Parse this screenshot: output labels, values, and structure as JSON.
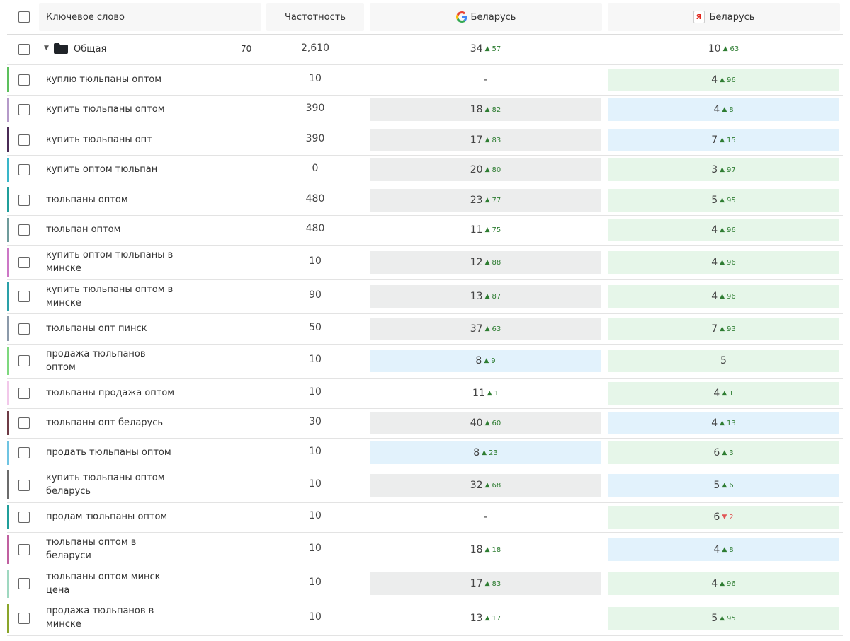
{
  "header": {
    "keyword_label": "Ключевое слово",
    "frequency_label": "Частотность",
    "google_label": "Беларусь",
    "yandex_label": "Беларусь",
    "yandex_letter": "Я"
  },
  "group": {
    "name": "Общая",
    "count": "70",
    "frequency": "2,610",
    "google": {
      "pos": "34",
      "delta": "57",
      "dir": "up"
    },
    "yandex": {
      "pos": "10",
      "delta": "63",
      "dir": "up"
    }
  },
  "rows": [
    {
      "keyword": "куплю тюльпаны оптом",
      "frequency": "10",
      "marker": "#5cc05c",
      "google": {
        "pos": "-",
        "delta": "",
        "dir": "",
        "bg": "none"
      },
      "yandex": {
        "pos": "4",
        "delta": "96",
        "dir": "up",
        "bg": "green"
      }
    },
    {
      "keyword": "купить тюльпаны оптом",
      "frequency": "390",
      "marker": "#b59ac9",
      "google": {
        "pos": "18",
        "delta": "82",
        "dir": "up",
        "bg": "gray"
      },
      "yandex": {
        "pos": "4",
        "delta": "8",
        "dir": "up",
        "bg": "blue"
      }
    },
    {
      "keyword": "купить тюльпаны опт",
      "frequency": "390",
      "marker": "#4a2a55",
      "google": {
        "pos": "17",
        "delta": "83",
        "dir": "up",
        "bg": "gray"
      },
      "yandex": {
        "pos": "7",
        "delta": "15",
        "dir": "up",
        "bg": "blue"
      }
    },
    {
      "keyword": "купить оптом тюльпан",
      "frequency": "0",
      "marker": "#39b6c9",
      "google": {
        "pos": "20",
        "delta": "80",
        "dir": "up",
        "bg": "gray"
      },
      "yandex": {
        "pos": "3",
        "delta": "97",
        "dir": "up",
        "bg": "green"
      }
    },
    {
      "keyword": "тюльпаны оптом",
      "frequency": "480",
      "marker": "#1f9e9a",
      "google": {
        "pos": "23",
        "delta": "77",
        "dir": "up",
        "bg": "gray"
      },
      "yandex": {
        "pos": "5",
        "delta": "95",
        "dir": "up",
        "bg": "green"
      }
    },
    {
      "keyword": "тюльпан оптом",
      "frequency": "480",
      "marker": "#6f9b9b",
      "google": {
        "pos": "11",
        "delta": "75",
        "dir": "up",
        "bg": "none"
      },
      "yandex": {
        "pos": "4",
        "delta": "96",
        "dir": "up",
        "bg": "green"
      }
    },
    {
      "keyword": "купить оптом тюльпаны в минске",
      "frequency": "10",
      "marker": "#cc77c6",
      "google": {
        "pos": "12",
        "delta": "88",
        "dir": "up",
        "bg": "gray"
      },
      "yandex": {
        "pos": "4",
        "delta": "96",
        "dir": "up",
        "bg": "green"
      }
    },
    {
      "keyword": "купить тюльпаны оптом в минске",
      "frequency": "90",
      "marker": "#2aa0a8",
      "google": {
        "pos": "13",
        "delta": "87",
        "dir": "up",
        "bg": "gray"
      },
      "yandex": {
        "pos": "4",
        "delta": "96",
        "dir": "up",
        "bg": "green"
      }
    },
    {
      "keyword": "тюльпаны опт пинск",
      "frequency": "50",
      "marker": "#8c9aaa",
      "google": {
        "pos": "37",
        "delta": "63",
        "dir": "up",
        "bg": "gray"
      },
      "yandex": {
        "pos": "7",
        "delta": "93",
        "dir": "up",
        "bg": "green"
      }
    },
    {
      "keyword": "продажа тюльпанов оптом",
      "frequency": "10",
      "marker": "#7ed87e",
      "google": {
        "pos": "8",
        "delta": "9",
        "dir": "up",
        "bg": "blue"
      },
      "yandex": {
        "pos": "5",
        "delta": "",
        "dir": "",
        "bg": "green"
      }
    },
    {
      "keyword": "тюльпаны продажа оптом",
      "frequency": "10",
      "marker": "#f2c8ea",
      "google": {
        "pos": "11",
        "delta": "1",
        "dir": "up",
        "bg": "none"
      },
      "yandex": {
        "pos": "4",
        "delta": "1",
        "dir": "up",
        "bg": "green"
      }
    },
    {
      "keyword": "тюльпаны опт беларусь",
      "frequency": "30",
      "marker": "#6e3b45",
      "google": {
        "pos": "40",
        "delta": "60",
        "dir": "up",
        "bg": "gray"
      },
      "yandex": {
        "pos": "4",
        "delta": "13",
        "dir": "up",
        "bg": "blue"
      }
    },
    {
      "keyword": "продать тюльпаны оптом",
      "frequency": "10",
      "marker": "#6fc4e2",
      "google": {
        "pos": "8",
        "delta": "23",
        "dir": "up",
        "bg": "blue"
      },
      "yandex": {
        "pos": "6",
        "delta": "3",
        "dir": "up",
        "bg": "green"
      }
    },
    {
      "keyword": "купить тюльпаны оптом беларусь",
      "frequency": "10",
      "marker": "#6b6b6b",
      "google": {
        "pos": "32",
        "delta": "68",
        "dir": "up",
        "bg": "gray"
      },
      "yandex": {
        "pos": "5",
        "delta": "6",
        "dir": "up",
        "bg": "blue"
      }
    },
    {
      "keyword": "продам тюльпаны оптом",
      "frequency": "10",
      "marker": "#1f9e9a",
      "google": {
        "pos": "-",
        "delta": "",
        "dir": "",
        "bg": "none"
      },
      "yandex": {
        "pos": "6",
        "delta": "2",
        "dir": "down",
        "bg": "green"
      }
    },
    {
      "keyword": "тюльпаны оптом в беларуси",
      "frequency": "10",
      "marker": "#c060a0",
      "google": {
        "pos": "18",
        "delta": "18",
        "dir": "up",
        "bg": "none"
      },
      "yandex": {
        "pos": "4",
        "delta": "8",
        "dir": "up",
        "bg": "blue"
      }
    },
    {
      "keyword": "тюльпаны оптом минск цена",
      "frequency": "10",
      "marker": "#9fd8c0",
      "google": {
        "pos": "17",
        "delta": "83",
        "dir": "up",
        "bg": "gray"
      },
      "yandex": {
        "pos": "4",
        "delta": "96",
        "dir": "up",
        "bg": "green"
      }
    },
    {
      "keyword": "продажа тюльпанов в минске",
      "frequency": "10",
      "marker": "#8aa52a",
      "google": {
        "pos": "13",
        "delta": "17",
        "dir": "up",
        "bg": "none"
      },
      "yandex": {
        "pos": "5",
        "delta": "95",
        "dir": "up",
        "bg": "green"
      }
    }
  ]
}
